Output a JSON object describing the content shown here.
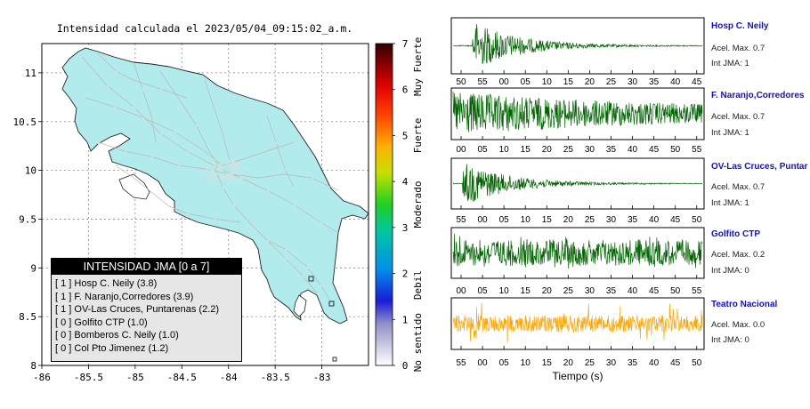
{
  "map": {
    "title": "Intensidad calculada el 2023/05/04_09:15:02_a.m.",
    "x_ticks": [
      "-86",
      "-85.5",
      "-85",
      "-84.5",
      "-84",
      "-83.5",
      "-83"
    ],
    "y_ticks": [
      "11",
      "10.5",
      "10",
      "9.5",
      "9",
      "8.5",
      "8"
    ],
    "xlim": [
      -86,
      -82.5
    ],
    "ylim": [
      8,
      11.3
    ],
    "land_color": "#b2ebeb",
    "road_color": "#b8b8b8"
  },
  "colorbar": {
    "ticks": [
      "0",
      "1",
      "2",
      "3",
      "4",
      "5",
      "6",
      "7"
    ],
    "labels": [
      "No sentido",
      "Debil",
      "Moderado",
      "Fuerte",
      "Muy Fuerte"
    ]
  },
  "legend": {
    "header": "INTENSIDAD JMA [0 a 7]",
    "items": [
      "[ 1 ]  Hosp C. Neily (3.8)",
      "[ 1 ]  F. Naranjo,Corredores (3.9)",
      "[ 1 ]  OV-Las Cruces, Puntarenas (2.2)",
      "[ 0 ]  Golfito CTP (1.0)",
      "[ 0 ]  Bomberos C. Neily (1.0)",
      "[ 0 ]  Col Pto Jimenez (1.2)"
    ]
  },
  "waveforms": {
    "xlabel": "Tiempo (s)",
    "panels": [
      {
        "title": "Hosp C. Neily",
        "accel": "Acel. Max. 0.7",
        "int": "Int JMA: 1",
        "ticks": [
          "50",
          "55",
          "00",
          "05",
          "10",
          "15",
          "20",
          "25",
          "30",
          "35",
          "40",
          "45"
        ],
        "color": "#006400",
        "type": "burst",
        "onset": 0.08
      },
      {
        "title": "F. Naranjo,Corredores",
        "accel": "Acel. Max. 0.7",
        "int": "Int JMA: 1",
        "ticks": [
          "00",
          "05",
          "10",
          "15",
          "20",
          "25",
          "30",
          "35",
          "40",
          "45",
          "50",
          "55"
        ],
        "color": "#006400",
        "type": "sustained",
        "onset": 0.0
      },
      {
        "title": "OV-Las Cruces, Puntar",
        "accel": "Acel. Max. 0.7",
        "int": "Int JMA: 1",
        "ticks": [
          "55",
          "00",
          "05",
          "10",
          "15",
          "20",
          "25",
          "30",
          "35",
          "40",
          "45",
          "50"
        ],
        "color": "#006400",
        "type": "burst",
        "onset": 0.04
      },
      {
        "title": "Golfito CTP",
        "accel": "Acel. Max. 0.2",
        "int": "Int JMA: 0",
        "ticks": [
          "00",
          "05",
          "10",
          "15",
          "20",
          "25",
          "30",
          "35",
          "40",
          "45",
          "50",
          "55"
        ],
        "color": "#006400",
        "type": "sustained2",
        "onset": 0.0
      },
      {
        "title": "Teatro Nacional",
        "accel": "Acel. Max. 0.0",
        "int": "Int JMA: 0",
        "ticks": [
          "55",
          "00",
          "05",
          "10",
          "15",
          "20",
          "25",
          "30",
          "35",
          "40",
          "45",
          "50"
        ],
        "color": "#ffa500",
        "type": "noise",
        "onset": 0.0
      }
    ]
  },
  "chart_data": [
    {
      "type": "map",
      "title": "Intensidad calculada el 2023/05/04_09:15:02_a.m.",
      "xlim": [
        -86,
        -82.5
      ],
      "ylim": [
        8,
        11.3
      ],
      "x_ticks": [
        -86,
        -85.5,
        -85,
        -84.5,
        -84,
        -83.5,
        -83
      ],
      "y_ticks": [
        11,
        10.5,
        10,
        9.5,
        9,
        8.5,
        8
      ],
      "colorbar": {
        "range": [
          0,
          7
        ],
        "labels": [
          "No sentido",
          "Debil",
          "Moderado",
          "Fuerte",
          "Muy Fuerte"
        ]
      },
      "stations": [
        {
          "name": "Hosp C. Neily",
          "jma": 1,
          "pga": 3.8
        },
        {
          "name": "F. Naranjo,Corredores",
          "jma": 1,
          "pga": 3.9
        },
        {
          "name": "OV-Las Cruces, Puntarenas",
          "jma": 1,
          "pga": 2.2
        },
        {
          "name": "Golfito CTP",
          "jma": 0,
          "pga": 1.0
        },
        {
          "name": "Bomberos C. Neily",
          "jma": 0,
          "pga": 1.0
        },
        {
          "name": "Col Pto Jimenez",
          "jma": 0,
          "pga": 1.2
        }
      ]
    },
    {
      "type": "line",
      "xlabel": "Tiempo (s)",
      "series": [
        {
          "name": "Hosp C. Neily",
          "accel_max": 0.7,
          "int_jma": 1
        },
        {
          "name": "F. Naranjo,Corredores",
          "accel_max": 0.7,
          "int_jma": 1
        },
        {
          "name": "OV-Las Cruces, Puntar",
          "accel_max": 0.7,
          "int_jma": 1
        },
        {
          "name": "Golfito CTP",
          "accel_max": 0.2,
          "int_jma": 0
        },
        {
          "name": "Teatro Nacional",
          "accel_max": 0.0,
          "int_jma": 0
        }
      ]
    }
  ]
}
